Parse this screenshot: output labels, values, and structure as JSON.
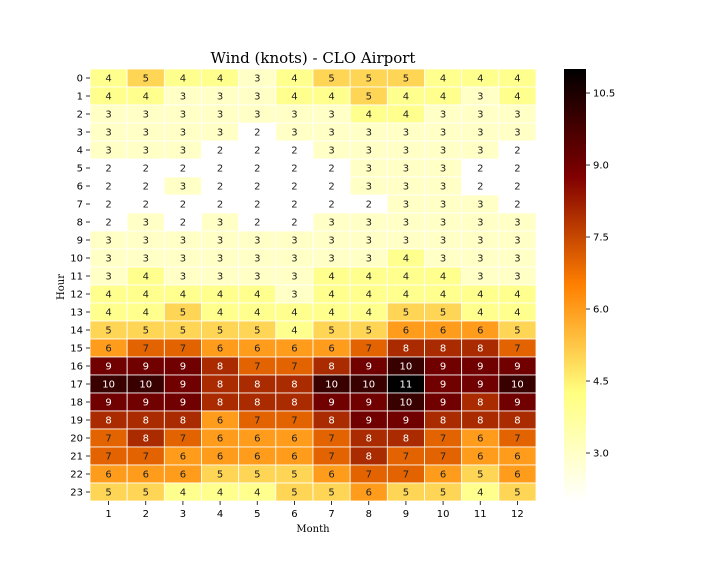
{
  "chart_data": {
    "type": "heatmap",
    "title": "Wind (knots) - CLO Airport",
    "xlabel": "Month",
    "ylabel": "Hour",
    "x": [
      "1",
      "2",
      "3",
      "4",
      "5",
      "6",
      "7",
      "8",
      "9",
      "10",
      "11",
      "12"
    ],
    "y": [
      "0",
      "1",
      "2",
      "3",
      "4",
      "5",
      "6",
      "7",
      "8",
      "9",
      "10",
      "11",
      "12",
      "13",
      "14",
      "15",
      "16",
      "17",
      "18",
      "19",
      "20",
      "21",
      "22",
      "23"
    ],
    "values": [
      [
        4,
        5,
        4,
        4,
        3,
        4,
        5,
        5,
        5,
        4,
        4,
        4
      ],
      [
        4,
        4,
        3,
        3,
        3,
        4,
        4,
        5,
        4,
        4,
        3,
        4
      ],
      [
        3,
        3,
        3,
        3,
        3,
        3,
        3,
        4,
        4,
        3,
        3,
        3
      ],
      [
        3,
        3,
        3,
        3,
        2,
        3,
        3,
        3,
        3,
        3,
        3,
        3
      ],
      [
        3,
        3,
        3,
        2,
        2,
        2,
        3,
        3,
        3,
        3,
        3,
        2
      ],
      [
        2,
        2,
        2,
        2,
        2,
        2,
        2,
        3,
        3,
        3,
        2,
        2
      ],
      [
        2,
        2,
        3,
        2,
        2,
        2,
        2,
        3,
        3,
        3,
        2,
        2
      ],
      [
        2,
        2,
        2,
        2,
        2,
        2,
        2,
        2,
        3,
        3,
        3,
        2
      ],
      [
        2,
        3,
        2,
        3,
        2,
        2,
        3,
        3,
        3,
        3,
        3,
        3
      ],
      [
        3,
        3,
        3,
        3,
        3,
        3,
        3,
        3,
        3,
        3,
        3,
        3
      ],
      [
        3,
        3,
        3,
        3,
        3,
        3,
        3,
        3,
        4,
        3,
        3,
        3
      ],
      [
        3,
        4,
        3,
        3,
        3,
        3,
        4,
        4,
        4,
        4,
        3,
        3
      ],
      [
        4,
        4,
        4,
        4,
        4,
        3,
        4,
        4,
        4,
        4,
        4,
        4
      ],
      [
        4,
        4,
        5,
        4,
        4,
        4,
        4,
        4,
        5,
        5,
        4,
        4
      ],
      [
        5,
        5,
        5,
        5,
        5,
        4,
        5,
        5,
        6,
        6,
        6,
        5
      ],
      [
        6,
        7,
        7,
        6,
        6,
        6,
        6,
        7,
        8,
        8,
        8,
        7
      ],
      [
        9,
        9,
        9,
        8,
        7,
        7,
        8,
        9,
        10,
        9,
        9,
        9
      ],
      [
        10,
        10,
        9,
        8,
        8,
        8,
        10,
        10,
        11,
        9,
        9,
        10
      ],
      [
        9,
        9,
        9,
        8,
        8,
        8,
        9,
        9,
        10,
        9,
        8,
        9
      ],
      [
        8,
        8,
        8,
        6,
        7,
        7,
        8,
        9,
        9,
        8,
        8,
        8
      ],
      [
        7,
        8,
        7,
        6,
        6,
        6,
        7,
        8,
        8,
        7,
        6,
        7
      ],
      [
        7,
        7,
        6,
        6,
        6,
        6,
        7,
        8,
        7,
        7,
        6,
        6
      ],
      [
        6,
        6,
        6,
        5,
        5,
        5,
        6,
        7,
        7,
        6,
        5,
        6
      ],
      [
        5,
        5,
        4,
        4,
        4,
        5,
        5,
        6,
        5,
        5,
        4,
        5
      ]
    ],
    "colorbar": {
      "colormap": "afmhot_r",
      "range": [
        2,
        11
      ],
      "ticks": [
        "3.0",
        "4.5",
        "6.0",
        "7.5",
        "9.0",
        "10.5"
      ]
    },
    "grid": false,
    "legend": "colorbar-right"
  }
}
